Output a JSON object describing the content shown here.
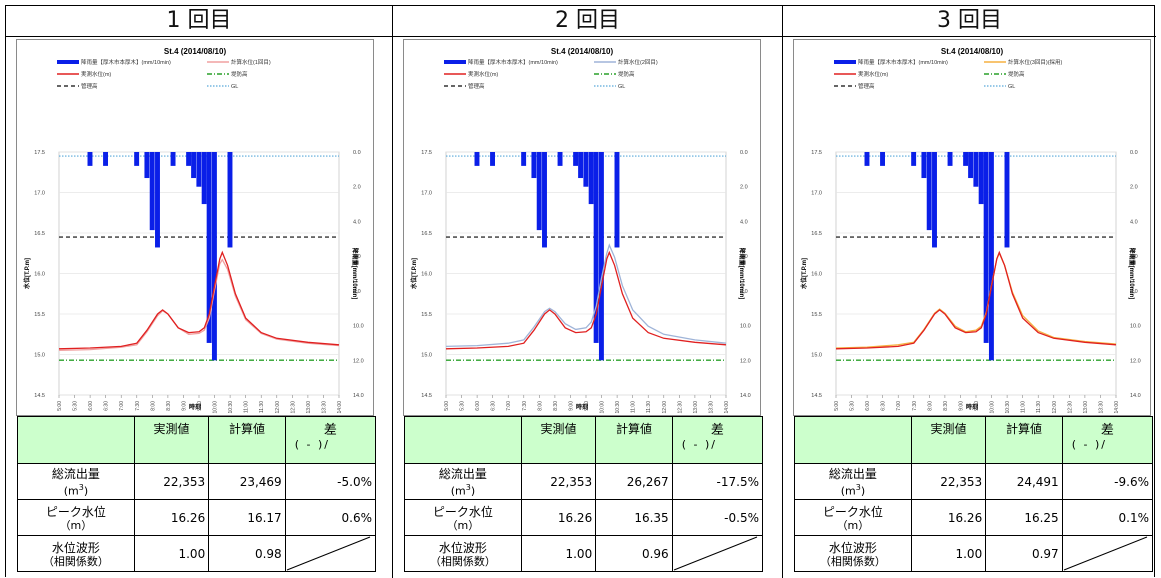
{
  "chart_data": [
    {
      "type": "line",
      "title": "St.4 (2014/08/10)",
      "xlabel": "時刻",
      "ylabel_left": "水位[T.P.m]",
      "ylabel_right": "降雨量[mm/10min]",
      "x_ticks": [
        "5:00",
        "5:30",
        "6:00",
        "6:30",
        "7:00",
        "7:30",
        "8:00",
        "8:30",
        "9:00",
        "9:30",
        "10:00",
        "10:30",
        "11:00",
        "11:30",
        "12:00",
        "12:30",
        "13:00",
        "13:30",
        "14:00"
      ],
      "left_ticks": [
        "17.5",
        "17.0",
        "16.5",
        "16.0",
        "15.5",
        "15.0",
        "14.5"
      ],
      "right_ticks": [
        "0.0",
        "2.0",
        "4.0",
        "6.0",
        "8.0",
        "10.0",
        "12.0",
        "14.0"
      ],
      "ylim_left": [
        14.5,
        17.5
      ],
      "ylim_right": [
        14,
        0
      ],
      "legend": [
        "降雨量【厚木市本厚木】(mm/10min)",
        "計算水位(1回目)",
        "実測水位(m)",
        "堤防高",
        "管理高",
        "GL"
      ],
      "reference_lines": {
        "管理高": 16.45,
        "堤防高": 14.93,
        "GL": 17.45
      },
      "rain": [
        {
          "t": 6.0,
          "v": 0.8
        },
        {
          "t": 6.5,
          "v": 0.8
        },
        {
          "t": 7.5,
          "v": 0.8
        },
        {
          "t": 7.83,
          "v": 1.5
        },
        {
          "t": 8.0,
          "v": 4.5
        },
        {
          "t": 8.17,
          "v": 5.5
        },
        {
          "t": 8.67,
          "v": 0.8
        },
        {
          "t": 9.17,
          "v": 0.8
        },
        {
          "t": 9.33,
          "v": 1.5
        },
        {
          "t": 9.5,
          "v": 2.0
        },
        {
          "t": 9.67,
          "v": 3.0
        },
        {
          "t": 9.83,
          "v": 11.0
        },
        {
          "t": 10.0,
          "v": 12.0
        },
        {
          "t": 10.5,
          "v": 5.5
        }
      ],
      "observed": [
        [
          5.0,
          15.07
        ],
        [
          6.0,
          15.08
        ],
        [
          7.0,
          15.1
        ],
        [
          7.5,
          15.14
        ],
        [
          7.83,
          15.3
        ],
        [
          8.17,
          15.5
        ],
        [
          8.33,
          15.55
        ],
        [
          8.5,
          15.5
        ],
        [
          8.83,
          15.33
        ],
        [
          9.17,
          15.27
        ],
        [
          9.5,
          15.28
        ],
        [
          9.67,
          15.33
        ],
        [
          9.83,
          15.5
        ],
        [
          10.0,
          15.85
        ],
        [
          10.17,
          16.18
        ],
        [
          10.25,
          16.26
        ],
        [
          10.42,
          16.1
        ],
        [
          10.67,
          15.75
        ],
        [
          11.0,
          15.45
        ],
        [
          11.5,
          15.27
        ],
        [
          12.0,
          15.2
        ],
        [
          13.0,
          15.15
        ],
        [
          14.0,
          15.12
        ]
      ],
      "series": [
        {
          "name": "計算水位(1回目)",
          "color": "#f0a0a0",
          "values": [
            [
              5.0,
              15.05
            ],
            [
              6.0,
              15.06
            ],
            [
              7.0,
              15.09
            ],
            [
              7.5,
              15.12
            ],
            [
              7.83,
              15.28
            ],
            [
              8.17,
              15.48
            ],
            [
              8.33,
              15.54
            ],
            [
              8.5,
              15.5
            ],
            [
              8.83,
              15.33
            ],
            [
              9.17,
              15.25
            ],
            [
              9.5,
              15.26
            ],
            [
              9.67,
              15.3
            ],
            [
              9.83,
              15.45
            ],
            [
              10.0,
              15.8
            ],
            [
              10.17,
              16.12
            ],
            [
              10.25,
              16.17
            ],
            [
              10.42,
              16.05
            ],
            [
              10.67,
              15.72
            ],
            [
              11.0,
              15.43
            ],
            [
              11.5,
              15.26
            ],
            [
              12.0,
              15.19
            ],
            [
              13.0,
              15.14
            ],
            [
              14.0,
              15.11
            ]
          ]
        }
      ],
      "colors": {
        "rain": "#0a1fe8",
        "observed": "#e02020",
        "kanri": "#333333",
        "teibou": "#2aa02a",
        "gl": "#59a9d9"
      }
    },
    {
      "type": "line",
      "title": "St.4 (2014/08/10)",
      "xlabel": "時刻",
      "ylabel_left": "水位[T.P.m]",
      "ylabel_right": "降雨量[mm/10min]",
      "x_ticks": [
        "5:00",
        "5:30",
        "6:00",
        "6:30",
        "7:00",
        "7:30",
        "8:00",
        "8:30",
        "9:00",
        "9:30",
        "10:00",
        "10:30",
        "11:00",
        "11:30",
        "12:00",
        "12:30",
        "13:00",
        "13:30",
        "14:00"
      ],
      "left_ticks": [
        "17.5",
        "17.0",
        "16.5",
        "16.0",
        "15.5",
        "15.0",
        "14.5"
      ],
      "right_ticks": [
        "0.0",
        "2.0",
        "4.0",
        "6.0",
        "8.0",
        "10.0",
        "12.0",
        "14.0"
      ],
      "ylim_left": [
        14.5,
        17.5
      ],
      "ylim_right": [
        14,
        0
      ],
      "legend": [
        "降雨量【厚木市本厚木】(mm/10min)",
        "計算水位(2回目)",
        "実測水位(m)",
        "堤防高",
        "管理高",
        "GL"
      ],
      "reference_lines": {
        "管理高": 16.45,
        "堤防高": 14.93,
        "GL": 17.45
      },
      "rain": [
        {
          "t": 6.0,
          "v": 0.8
        },
        {
          "t": 6.5,
          "v": 0.8
        },
        {
          "t": 7.5,
          "v": 0.8
        },
        {
          "t": 7.83,
          "v": 1.5
        },
        {
          "t": 8.0,
          "v": 4.5
        },
        {
          "t": 8.17,
          "v": 5.5
        },
        {
          "t": 8.67,
          "v": 0.8
        },
        {
          "t": 9.17,
          "v": 0.8
        },
        {
          "t": 9.33,
          "v": 1.5
        },
        {
          "t": 9.5,
          "v": 2.0
        },
        {
          "t": 9.67,
          "v": 3.0
        },
        {
          "t": 9.83,
          "v": 11.0
        },
        {
          "t": 10.0,
          "v": 12.0
        },
        {
          "t": 10.5,
          "v": 5.5
        }
      ],
      "observed": [
        [
          5.0,
          15.07
        ],
        [
          6.0,
          15.08
        ],
        [
          7.0,
          15.1
        ],
        [
          7.5,
          15.14
        ],
        [
          7.83,
          15.3
        ],
        [
          8.17,
          15.5
        ],
        [
          8.33,
          15.55
        ],
        [
          8.5,
          15.5
        ],
        [
          8.83,
          15.33
        ],
        [
          9.17,
          15.27
        ],
        [
          9.5,
          15.28
        ],
        [
          9.67,
          15.33
        ],
        [
          9.83,
          15.5
        ],
        [
          10.0,
          15.85
        ],
        [
          10.17,
          16.18
        ],
        [
          10.25,
          16.26
        ],
        [
          10.42,
          16.1
        ],
        [
          10.67,
          15.75
        ],
        [
          11.0,
          15.45
        ],
        [
          11.5,
          15.27
        ],
        [
          12.0,
          15.2
        ],
        [
          13.0,
          15.15
        ],
        [
          14.0,
          15.12
        ]
      ],
      "series": [
        {
          "name": "計算水位(2回目)",
          "color": "#9fb4d8",
          "values": [
            [
              5.0,
              15.1
            ],
            [
              6.0,
              15.11
            ],
            [
              7.0,
              15.14
            ],
            [
              7.5,
              15.18
            ],
            [
              7.83,
              15.34
            ],
            [
              8.17,
              15.53
            ],
            [
              8.33,
              15.57
            ],
            [
              8.5,
              15.53
            ],
            [
              8.83,
              15.38
            ],
            [
              9.17,
              15.31
            ],
            [
              9.5,
              15.33
            ],
            [
              9.67,
              15.4
            ],
            [
              9.83,
              15.6
            ],
            [
              10.0,
              15.95
            ],
            [
              10.17,
              16.25
            ],
            [
              10.25,
              16.35
            ],
            [
              10.42,
              16.2
            ],
            [
              10.67,
              15.85
            ],
            [
              11.0,
              15.55
            ],
            [
              11.5,
              15.35
            ],
            [
              12.0,
              15.25
            ],
            [
              13.0,
              15.18
            ],
            [
              14.0,
              15.14
            ]
          ]
        }
      ],
      "colors": {
        "rain": "#0a1fe8",
        "observed": "#e02020",
        "kanri": "#333333",
        "teibou": "#2aa02a",
        "gl": "#59a9d9"
      }
    },
    {
      "type": "line",
      "title": "St.4 (2014/08/10)",
      "xlabel": "時刻",
      "ylabel_left": "水位[T.P.m]",
      "ylabel_right": "降雨量[mm/10min]",
      "x_ticks": [
        "5:00",
        "5:30",
        "6:00",
        "6:30",
        "7:00",
        "7:30",
        "8:00",
        "8:30",
        "9:00",
        "9:30",
        "10:00",
        "10:30",
        "11:00",
        "11:30",
        "12:00",
        "12:30",
        "13:00",
        "13:30",
        "14:00"
      ],
      "left_ticks": [
        "17.5",
        "17.0",
        "16.5",
        "16.0",
        "15.5",
        "15.0",
        "14.5"
      ],
      "right_ticks": [
        "0.0",
        "2.0",
        "4.0",
        "6.0",
        "8.0",
        "10.0",
        "12.0",
        "14.0"
      ],
      "ylim_left": [
        14.5,
        17.5
      ],
      "ylim_right": [
        14,
        0
      ],
      "legend": [
        "降雨量【厚木市本厚木】(mm/10min)",
        "計算水位(3回目)(採用)",
        "実測水位(m)",
        "堤防高",
        "管理高",
        "GL"
      ],
      "reference_lines": {
        "管理高": 16.45,
        "堤防高": 14.93,
        "GL": 17.45
      },
      "rain": [
        {
          "t": 6.0,
          "v": 0.8
        },
        {
          "t": 6.5,
          "v": 0.8
        },
        {
          "t": 7.5,
          "v": 0.8
        },
        {
          "t": 7.83,
          "v": 1.5
        },
        {
          "t": 8.0,
          "v": 4.5
        },
        {
          "t": 8.17,
          "v": 5.5
        },
        {
          "t": 8.67,
          "v": 0.8
        },
        {
          "t": 9.17,
          "v": 0.8
        },
        {
          "t": 9.33,
          "v": 1.5
        },
        {
          "t": 9.5,
          "v": 2.0
        },
        {
          "t": 9.67,
          "v": 3.0
        },
        {
          "t": 9.83,
          "v": 11.0
        },
        {
          "t": 10.0,
          "v": 12.0
        },
        {
          "t": 10.5,
          "v": 5.5
        }
      ],
      "observed": [
        [
          5.0,
          15.07
        ],
        [
          6.0,
          15.08
        ],
        [
          7.0,
          15.1
        ],
        [
          7.5,
          15.14
        ],
        [
          7.83,
          15.3
        ],
        [
          8.17,
          15.5
        ],
        [
          8.33,
          15.55
        ],
        [
          8.5,
          15.5
        ],
        [
          8.83,
          15.33
        ],
        [
          9.17,
          15.27
        ],
        [
          9.5,
          15.28
        ],
        [
          9.67,
          15.33
        ],
        [
          9.83,
          15.5
        ],
        [
          10.0,
          15.85
        ],
        [
          10.17,
          16.18
        ],
        [
          10.25,
          16.26
        ],
        [
          10.42,
          16.1
        ],
        [
          10.67,
          15.75
        ],
        [
          11.0,
          15.45
        ],
        [
          11.5,
          15.27
        ],
        [
          12.0,
          15.2
        ],
        [
          13.0,
          15.15
        ],
        [
          14.0,
          15.12
        ]
      ],
      "series": [
        {
          "name": "計算水位(3回目)(採用)",
          "color": "#f5b041",
          "values": [
            [
              5.0,
              15.08
            ],
            [
              6.0,
              15.09
            ],
            [
              7.0,
              15.12
            ],
            [
              7.5,
              15.15
            ],
            [
              7.83,
              15.31
            ],
            [
              8.17,
              15.51
            ],
            [
              8.33,
              15.56
            ],
            [
              8.5,
              15.51
            ],
            [
              8.83,
              15.35
            ],
            [
              9.17,
              15.28
            ],
            [
              9.5,
              15.3
            ],
            [
              9.67,
              15.35
            ],
            [
              9.83,
              15.52
            ],
            [
              10.0,
              15.86
            ],
            [
              10.17,
              16.18
            ],
            [
              10.25,
              16.25
            ],
            [
              10.42,
              16.1
            ],
            [
              10.67,
              15.77
            ],
            [
              11.0,
              15.48
            ],
            [
              11.5,
              15.29
            ],
            [
              12.0,
              15.21
            ],
            [
              13.0,
              15.16
            ],
            [
              14.0,
              15.13
            ]
          ]
        }
      ],
      "colors": {
        "rain": "#0a1fe8",
        "observed": "#e02020",
        "kanri": "#333333",
        "teibou": "#2aa02a",
        "gl": "#59a9d9"
      }
    }
  ],
  "columns": [
    {
      "header": "1 回目",
      "table": {
        "h_measured": "実測値",
        "h_calc": "計算値",
        "h_diff": "差",
        "h_diff_formula": "( - )/",
        "rows": [
          {
            "label": "総流出量",
            "unit": "(m",
            "unit_sup": "3",
            "unit_tail": ")",
            "measured": "22,353",
            "calc": "23,469",
            "diff": "-5.0%"
          },
          {
            "label": "ピーク水位",
            "unit": "（m）",
            "measured": "16.26",
            "calc": "16.17",
            "diff": "0.6%"
          },
          {
            "label": "水位波形",
            "unit": "（相関係数）",
            "measured": "1.00",
            "calc": "0.98",
            "diff": ""
          }
        ]
      }
    },
    {
      "header": "2 回目",
      "table": {
        "h_measured": "実測値",
        "h_calc": "計算値",
        "h_diff": "差",
        "h_diff_formula": "( - )/",
        "rows": [
          {
            "label": "総流出量",
            "unit": "(m",
            "unit_sup": "3",
            "unit_tail": ")",
            "measured": "22,353",
            "calc": "26,267",
            "diff": "-17.5%"
          },
          {
            "label": "ピーク水位",
            "unit": "（m）",
            "measured": "16.26",
            "calc": "16.35",
            "diff": "-0.5%"
          },
          {
            "label": "水位波形",
            "unit": "（相関係数）",
            "measured": "1.00",
            "calc": "0.96",
            "diff": ""
          }
        ]
      }
    },
    {
      "header": "3 回目",
      "table": {
        "h_measured": "実測値",
        "h_calc": "計算値",
        "h_diff": "差",
        "h_diff_formula": "( - )/",
        "rows": [
          {
            "label": "総流出量",
            "unit": "(m",
            "unit_sup": "3",
            "unit_tail": ")",
            "measured": "22,353",
            "calc": "24,491",
            "diff": "-9.6%"
          },
          {
            "label": "ピーク水位",
            "unit": "（m）",
            "measured": "16.26",
            "calc": "16.25",
            "diff": "0.1%"
          },
          {
            "label": "水位波形",
            "unit": "（相関係数）",
            "measured": "1.00",
            "calc": "0.97",
            "diff": ""
          }
        ]
      }
    }
  ]
}
